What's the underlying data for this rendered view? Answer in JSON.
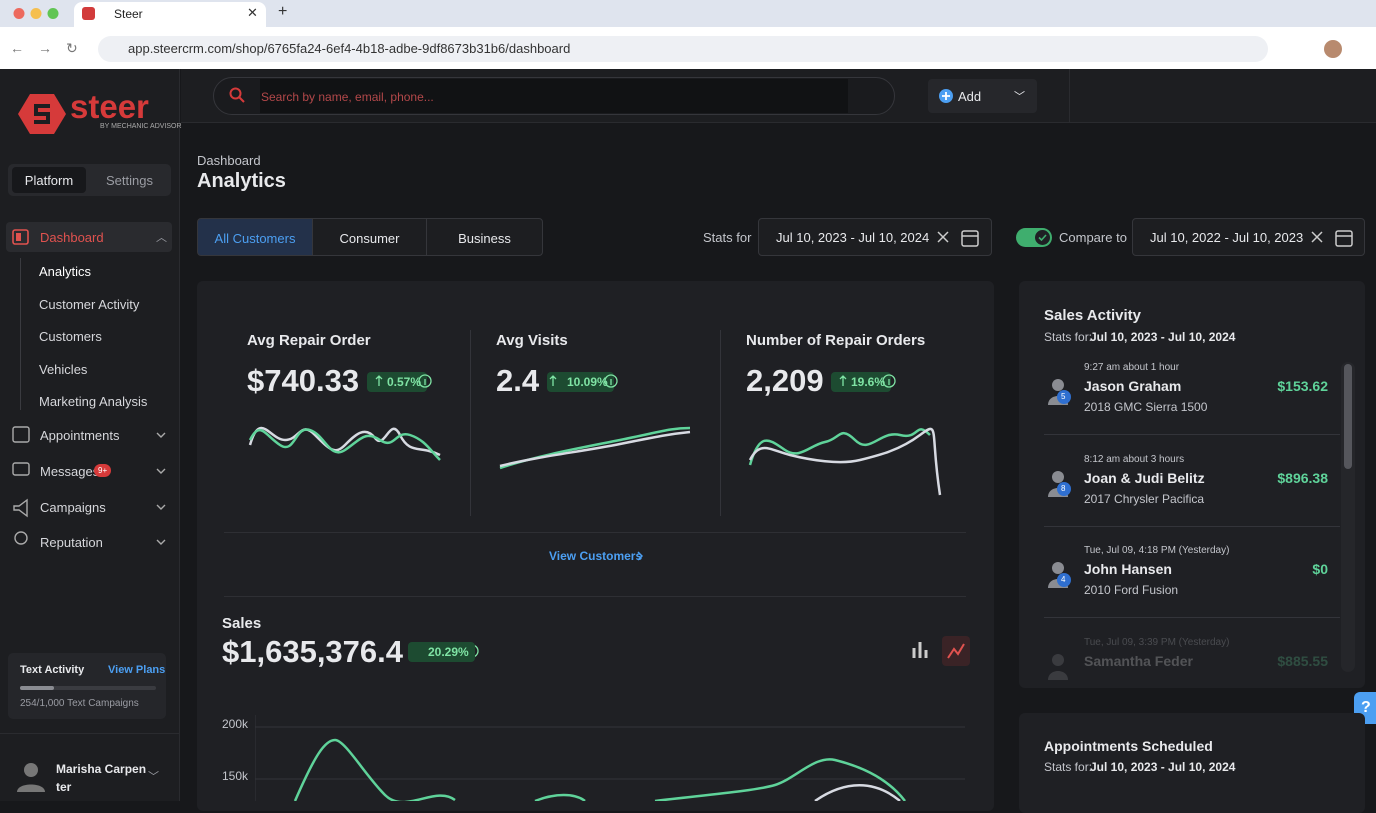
{
  "browser": {
    "tab_title": "Steer",
    "url": "app.steercrm.com/shop/6765fa24-6ef4-4b18-adbe-9df8673b31b6/dashboard"
  },
  "topbar": {
    "search_placeholder": "Search by name, email, phone...",
    "add": "Add"
  },
  "sidebar": {
    "logo": "steer",
    "logo_sub": "BY MECHANIC ADVISOR",
    "tabs": [
      "Platform",
      "Settings"
    ],
    "dashboard": {
      "label": "Dashboard",
      "children": [
        "Analytics",
        "Customer Activity",
        "Customers",
        "Vehicles",
        "Marketing Analysis"
      ]
    },
    "nav": [
      "Appointments",
      "Messages",
      "Campaigns",
      "Reputation"
    ],
    "messages_badge": "9+",
    "text_activity": {
      "title": "Text Activity",
      "link": "View Plans",
      "usage": "254/1,000 Text Campaigns"
    },
    "user": "Marisha Carpenter"
  },
  "header": {
    "breadcrumb": "Dashboard",
    "title": "Analytics"
  },
  "filters": {
    "segments": [
      "All Customers",
      "Consumer",
      "Business"
    ],
    "stats_for": "Stats for",
    "date": "Jul 10, 2023 - Jul 10, 2024",
    "compare": "Compare to",
    "compare_date": "Jul 10, 2022 - Jul 10, 2023"
  },
  "metrics": [
    {
      "label": "Avg Repair Order",
      "value": "$740.33",
      "change": "0.57%"
    },
    {
      "label": "Avg Visits",
      "value": "2.4",
      "change": "10.09%"
    },
    {
      "label": "Number of Repair Orders",
      "value": "2,209",
      "change": "19.6%"
    }
  ],
  "view_customers": "View Customers",
  "sales": {
    "title": "Sales",
    "value": "$1,635,376.4",
    "change": "20.29%",
    "yticks": [
      "200k",
      "150k"
    ]
  },
  "sales_activity": {
    "title": "Sales Activity",
    "stats_label": "Stats for:",
    "date": "Jul 10, 2023 - Jul 10, 2024",
    "items": [
      {
        "time": "9:27 am about 1 hour",
        "name": "Jason Graham",
        "vehicle": "2018 GMC Sierra 1500",
        "amount": "$153.62",
        "badge": "5"
      },
      {
        "time": "8:12 am about 3 hours",
        "name": "Joan & Judi Belitz",
        "vehicle": "2017 Chrysler Pacifica",
        "amount": "$896.38",
        "badge": "8"
      },
      {
        "time": "Tue, Jul 09, 4:18 PM (Yesterday)",
        "name": "John Hansen",
        "vehicle": "2010 Ford Fusion",
        "amount": "$0",
        "badge": "4"
      },
      {
        "time": "Tue, Jul 09, 3:39 PM (Yesterday)",
        "name": "Samantha Feder",
        "vehicle": "",
        "amount": "$885.55",
        "badge": ""
      }
    ]
  },
  "appointments": {
    "title": "Appointments Scheduled",
    "stats_label": "Stats for:",
    "date": "Jul 10, 2023 - Jul 10, 2024"
  }
}
